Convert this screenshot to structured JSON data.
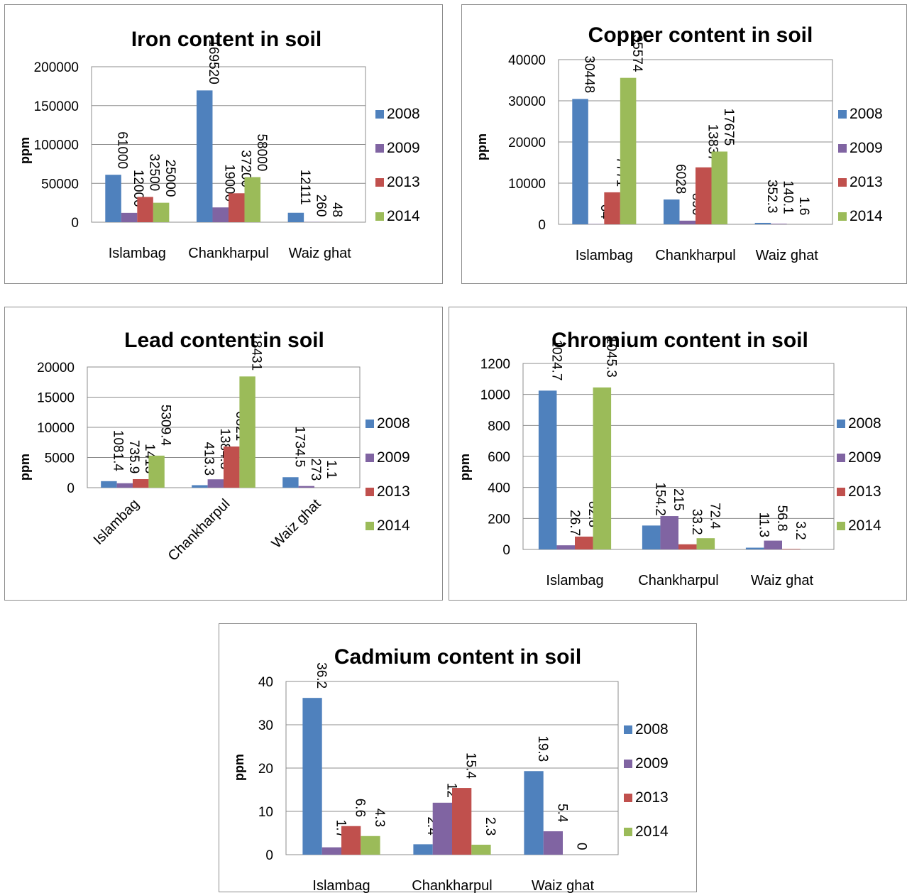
{
  "chart_data": [
    {
      "type": "bar",
      "title": "Iron content in soil",
      "ylabel": "ppm",
      "xlabel": "",
      "categories": [
        "Islambag",
        "Chankharpul",
        "Waiz ghat"
      ],
      "ylim": [
        0,
        200000
      ],
      "yticks": [
        "0",
        "50000",
        "100000",
        "150000",
        "200000"
      ],
      "grid": true,
      "legend": "right",
      "series": [
        {
          "name": "2008",
          "color": "#4f81bd",
          "values": [
            61000,
            169520,
            12111
          ],
          "labels": [
            "61000",
            "169520",
            "12111"
          ]
        },
        {
          "name": "2009",
          "color": "#8064a2",
          "values": [
            12000,
            19000,
            260
          ],
          "labels": [
            "12000",
            "19000",
            "260"
          ]
        },
        {
          "name": "2013",
          "color": "#c0504d",
          "values": [
            32500,
            37200,
            48
          ],
          "labels": [
            "32500",
            "37200",
            "48"
          ]
        },
        {
          "name": "2014",
          "color": "#9bbb59",
          "values": [
            25000,
            58000,
            null
          ],
          "labels": [
            "25000",
            "58000",
            ""
          ]
        }
      ]
    },
    {
      "type": "bar",
      "title": "Copper content in soil",
      "ylabel": "ppm",
      "xlabel": "",
      "categories": [
        "Islambag",
        "Chankharpul",
        "Waiz ghat"
      ],
      "ylim": [
        0,
        40000
      ],
      "yticks": [
        "0",
        "10000",
        "20000",
        "30000",
        "40000"
      ],
      "grid": true,
      "legend": "right",
      "series": [
        {
          "name": "2008",
          "color": "#4f81bd",
          "values": [
            30448,
            6028,
            352.3
          ],
          "labels": [
            "30448",
            "6028",
            "352.3"
          ]
        },
        {
          "name": "2009",
          "color": "#8064a2",
          "values": [
            64,
            890,
            140.1
          ],
          "labels": [
            "64",
            "890",
            "140.1"
          ]
        },
        {
          "name": "2013",
          "color": "#c0504d",
          "values": [
            7771,
            13837,
            1.6
          ],
          "labels": [
            "7771",
            "13837",
            "1.6"
          ]
        },
        {
          "name": "2014",
          "color": "#9bbb59",
          "values": [
            35574,
            17675,
            null
          ],
          "labels": [
            "35574",
            "17675",
            ""
          ]
        }
      ]
    },
    {
      "type": "bar",
      "title": "Lead content in soil",
      "ylabel": "ppm",
      "xlabel": "",
      "categories": [
        "Islambag",
        "Chankharpul",
        "Waiz ghat"
      ],
      "ylim": [
        0,
        20000
      ],
      "yticks": [
        "0",
        "5000",
        "10000",
        "15000",
        "20000"
      ],
      "grid": true,
      "legend": "right",
      "series": [
        {
          "name": "2008",
          "color": "#4f81bd",
          "values": [
            1081.4,
            413.3,
            1734.5
          ],
          "labels": [
            "1081.4",
            "413.3",
            "1734.5"
          ]
        },
        {
          "name": "2009",
          "color": "#8064a2",
          "values": [
            735.9,
            1384.3,
            273
          ],
          "labels": [
            "735.9",
            "1384.3",
            "273"
          ]
        },
        {
          "name": "2013",
          "color": "#c0504d",
          "values": [
            1413,
            6821,
            1.1
          ],
          "labels": [
            "1413",
            "6821",
            "1.1"
          ]
        },
        {
          "name": "2014",
          "color": "#9bbb59",
          "values": [
            5309.4,
            18431,
            null
          ],
          "labels": [
            "5309.4",
            "18431",
            ""
          ]
        }
      ]
    },
    {
      "type": "bar",
      "title": "Chromium content in soil",
      "ylabel": "ppm",
      "xlabel": "",
      "categories": [
        "Islambag",
        "Chankharpul",
        "Waiz ghat"
      ],
      "ylim": [
        0,
        1200
      ],
      "yticks": [
        "0",
        "200",
        "400",
        "600",
        "800",
        "1000",
        "1200"
      ],
      "grid": true,
      "legend": "right",
      "series": [
        {
          "name": "2008",
          "color": "#4f81bd",
          "values": [
            1024.7,
            154.2,
            11.3
          ],
          "labels": [
            "1024.7",
            "154.2",
            "11.3"
          ]
        },
        {
          "name": "2009",
          "color": "#8064a2",
          "values": [
            26.7,
            215,
            56.8
          ],
          "labels": [
            "26.7",
            "215",
            "56.8"
          ]
        },
        {
          "name": "2013",
          "color": "#c0504d",
          "values": [
            82.8,
            33.2,
            3.2
          ],
          "labels": [
            "82.8",
            "33.2",
            "3.2"
          ]
        },
        {
          "name": "2014",
          "color": "#9bbb59",
          "values": [
            1045.3,
            72.4,
            null
          ],
          "labels": [
            "1045.3",
            "72.4",
            ""
          ]
        }
      ]
    },
    {
      "type": "bar",
      "title": "Cadmium content in soil",
      "ylabel": "ppm",
      "xlabel": "",
      "categories": [
        "Islambag",
        "Chankharpul",
        "Waiz ghat"
      ],
      "ylim": [
        0,
        40
      ],
      "yticks": [
        "0",
        "10",
        "20",
        "30",
        "40"
      ],
      "grid": true,
      "legend": "right",
      "series": [
        {
          "name": "2008",
          "color": "#4f81bd",
          "values": [
            36.2,
            2.4,
            19.3
          ],
          "labels": [
            "36.2",
            "2.4",
            "19.3"
          ]
        },
        {
          "name": "2009",
          "color": "#8064a2",
          "values": [
            1.7,
            12,
            5.4
          ],
          "labels": [
            "1.7",
            "12",
            "5.4"
          ]
        },
        {
          "name": "2013",
          "color": "#c0504d",
          "values": [
            6.6,
            15.4,
            0
          ],
          "labels": [
            "6.6",
            "15.4",
            "0"
          ]
        },
        {
          "name": "2014",
          "color": "#9bbb59",
          "values": [
            4.3,
            2.3,
            null
          ],
          "labels": [
            "4.3",
            "2.3",
            ""
          ]
        }
      ]
    }
  ]
}
